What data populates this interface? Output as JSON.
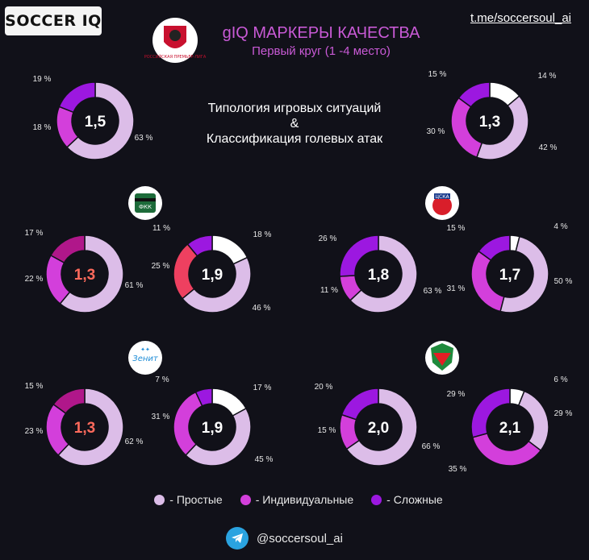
{
  "brand": {
    "logo_text": "SOCCER IQ",
    "channel_link": "t.me/soccersoul_ai"
  },
  "header": {
    "title": "gIQ МАРКЕРЫ КАЧЕСТВА",
    "subtitle": "Первый круг (1 -4 место)",
    "league_badge_text": "РОССИЙСКАЯ ПРЕМЬЕР-ЛИГА"
  },
  "typology": {
    "line1": "Типология игровых ситуаций",
    "line2": "&",
    "line3": "Классификация голевых атак"
  },
  "colors": {
    "simple": "#dcbde8",
    "individual": "#d33fdb",
    "complex": "#9c18e0",
    "white": "#ffffff",
    "red_sector": "#ee4060",
    "red_center": "#ff6a5c",
    "bg": "#111119"
  },
  "legend": [
    {
      "label": "- Простые",
      "color": "#dcbde8"
    },
    {
      "label": "- Индивидуальные",
      "color": "#d33fdb"
    },
    {
      "label": "- Сложные",
      "color": "#9c18e0"
    }
  ],
  "footer": {
    "handle": "@soccersoul_ai",
    "icon": "telegram-icon"
  },
  "teams": [
    {
      "name": "Краснодар",
      "badge_text": "ФКК",
      "icon": "krasnodar-crest-icon"
    },
    {
      "name": "ЦСКА",
      "badge_text": "ЦСКА",
      "icon": "cska-crest-icon"
    },
    {
      "name": "Зенит",
      "badge_text": "Зенит",
      "icon": "zenit-crest-icon"
    },
    {
      "name": "Локомотив",
      "badge_text": "",
      "icon": "lokomotiv-crest-icon"
    }
  ],
  "chart_data": [
    {
      "type": "donut",
      "center": "1,5",
      "slices": [
        {
          "label": "63 %",
          "value": 63,
          "color": "#dcbde8"
        },
        {
          "label": "18 %",
          "value": 18,
          "color": "#d33fdb"
        },
        {
          "label": "19 %",
          "value": 19,
          "color": "#9c18e0"
        }
      ]
    },
    {
      "type": "donut",
      "center": "1,3",
      "slices": [
        {
          "label": "14 %",
          "value": 14,
          "color": "#ffffff"
        },
        {
          "label": "42 %",
          "value": 42,
          "color": "#dcbde8"
        },
        {
          "label": "30 %",
          "value": 30,
          "color": "#d33fdb"
        },
        {
          "label": "15 %",
          "value": 15,
          "color": "#9c18e0"
        }
      ]
    },
    {
      "type": "donut",
      "center": "1,3",
      "center_color": "#ff6a5c",
      "slices": [
        {
          "label": "61 %",
          "value": 61,
          "color": "#dcbde8"
        },
        {
          "label": "22 %",
          "value": 22,
          "color": "#d33fdb"
        },
        {
          "label": "17 %",
          "value": 17,
          "color": "#b0178a"
        }
      ]
    },
    {
      "type": "donut",
      "center": "1,9",
      "slices": [
        {
          "label": "18 %",
          "value": 18,
          "color": "#ffffff"
        },
        {
          "label": "46 %",
          "value": 46,
          "color": "#dcbde8"
        },
        {
          "label": "25 %",
          "value": 25,
          "color": "#ee4060"
        },
        {
          "label": "11 %",
          "value": 11,
          "color": "#9c18e0"
        }
      ]
    },
    {
      "type": "donut",
      "center": "1,8",
      "slices": [
        {
          "label": "63 %",
          "value": 63,
          "color": "#dcbde8"
        },
        {
          "label": "11 %",
          "value": 11,
          "color": "#d33fdb"
        },
        {
          "label": "26 %",
          "value": 26,
          "color": "#9c18e0"
        }
      ]
    },
    {
      "type": "donut",
      "center": "1,7",
      "slices": [
        {
          "label": "4 %",
          "value": 4,
          "color": "#ffffff"
        },
        {
          "label": "50 %",
          "value": 50,
          "color": "#dcbde8"
        },
        {
          "label": "31 %",
          "value": 31,
          "color": "#d33fdb"
        },
        {
          "label": "15 %",
          "value": 15,
          "color": "#9c18e0"
        }
      ]
    },
    {
      "type": "donut",
      "center": "1,3",
      "center_color": "#ff6a5c",
      "slices": [
        {
          "label": "62 %",
          "value": 62,
          "color": "#dcbde8"
        },
        {
          "label": "23 %",
          "value": 23,
          "color": "#d33fdb"
        },
        {
          "label": "15 %",
          "value": 15,
          "color": "#b0178a"
        }
      ]
    },
    {
      "type": "donut",
      "center": "1,9",
      "slices": [
        {
          "label": "17 %",
          "value": 17,
          "color": "#ffffff"
        },
        {
          "label": "45 %",
          "value": 45,
          "color": "#dcbde8"
        },
        {
          "label": "31 %",
          "value": 31,
          "color": "#d33fdb"
        },
        {
          "label": "7 %",
          "value": 7,
          "color": "#9c18e0"
        }
      ]
    },
    {
      "type": "donut",
      "center": "2,0",
      "slices": [
        {
          "label": "66 %",
          "value": 66,
          "color": "#dcbde8"
        },
        {
          "label": "15 %",
          "value": 15,
          "color": "#d33fdb"
        },
        {
          "label": "20 %",
          "value": 20,
          "color": "#9c18e0"
        }
      ]
    },
    {
      "type": "donut",
      "center": "2,1",
      "slices": [
        {
          "label": "6 %",
          "value": 6,
          "color": "#ffffff"
        },
        {
          "label": "29 %",
          "value": 29,
          "color": "#dcbde8"
        },
        {
          "label": "35 %",
          "value": 35,
          "color": "#d33fdb"
        },
        {
          "label": "29 %",
          "value": 29,
          "color": "#9c18e0"
        }
      ]
    }
  ]
}
